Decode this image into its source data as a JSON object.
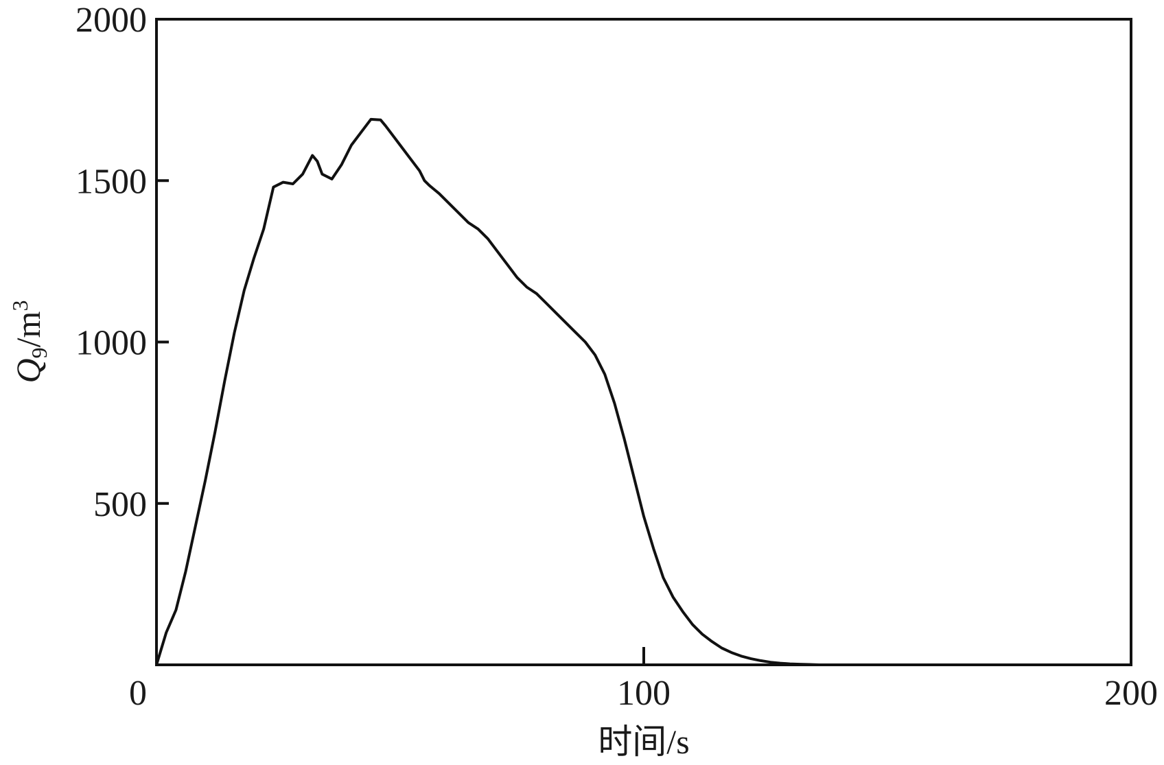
{
  "chart_data": {
    "type": "line",
    "title": "",
    "xlabel": "时间/s",
    "ylabel": {
      "symbol": "Q",
      "subscript": "9",
      "unit": "/m",
      "unit_superscript": "3"
    },
    "xlim": [
      0,
      200
    ],
    "ylim": [
      0,
      2000
    ],
    "x_ticks": [
      {
        "value": 0,
        "label": "0"
      },
      {
        "value": 100,
        "label": "100"
      },
      {
        "value": 200,
        "label": "200"
      }
    ],
    "y_ticks": [
      {
        "value": 500,
        "label": "500"
      },
      {
        "value": 1000,
        "label": "1000"
      },
      {
        "value": 1500,
        "label": "1500"
      },
      {
        "value": 2000,
        "label": "2000"
      }
    ],
    "grid": false,
    "legend": "none",
    "line_color": "#111111",
    "series": [
      {
        "x": [
          0,
          2,
          4,
          6,
          8,
          10,
          12,
          14,
          16,
          18,
          20,
          22,
          24,
          26,
          28,
          30,
          32,
          33,
          34,
          36,
          38,
          40,
          42,
          44,
          46,
          47,
          48,
          50,
          52,
          54,
          55,
          56,
          58,
          60,
          62,
          64,
          66,
          68,
          70,
          72,
          74,
          76,
          78,
          80,
          82,
          84,
          86,
          88,
          90,
          92,
          94,
          96,
          98,
          100,
          102,
          104,
          106,
          108,
          110,
          112,
          114,
          116,
          118,
          120,
          122,
          124,
          126,
          128,
          130,
          132,
          134,
          136,
          138,
          140,
          142,
          144,
          146,
          148,
          150,
          152,
          154,
          156,
          158,
          160,
          162,
          164
        ],
        "y": [
          0,
          100,
          170,
          290,
          430,
          570,
          720,
          880,
          1030,
          1160,
          1260,
          1350,
          1480,
          1495,
          1490,
          1520,
          1578,
          1560,
          1520,
          1505,
          1550,
          1610,
          1650,
          1690,
          1688,
          1670,
          1650,
          1610,
          1570,
          1530,
          1500,
          1485,
          1460,
          1430,
          1400,
          1370,
          1350,
          1320,
          1280,
          1240,
          1200,
          1170,
          1150,
          1120,
          1090,
          1060,
          1030,
          1000,
          960,
          900,
          810,
          700,
          580,
          460,
          360,
          270,
          210,
          165,
          125,
          95,
          72,
          52,
          38,
          27,
          19,
          13,
          8,
          5,
          3,
          2,
          1,
          0,
          0,
          0,
          0,
          0,
          0,
          0,
          0,
          0,
          0,
          0,
          0,
          0,
          0,
          0
        ]
      }
    ]
  }
}
